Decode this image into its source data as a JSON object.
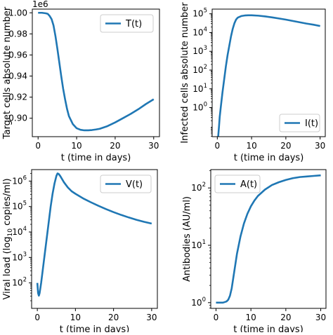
{
  "chart_data": [
    {
      "type": "line",
      "scale": "linear",
      "offset_text": "1e6",
      "xlabel": "t (time in days)",
      "ylabel": "Target cells absolute number",
      "xlim": [
        -1.5,
        31.5
      ],
      "ylim": [
        0.8825,
        1.0035
      ],
      "xticks": [
        0,
        10,
        20,
        30
      ],
      "xtick_labels": [
        "0",
        "10",
        "20",
        "30"
      ],
      "yticks": [
        0.9,
        0.92,
        0.94,
        0.96,
        0.98,
        1.0
      ],
      "ytick_labels": [
        "0.90",
        "0.92",
        "0.94",
        "0.96",
        "0.98",
        "1.00"
      ],
      "legend": {
        "label": "T(t)",
        "position": "upper right"
      },
      "series": [
        {
          "name": "T(t)",
          "color": "#1f77b4",
          "x": [
            0,
            1,
            2,
            2.5,
            3,
            3.5,
            4,
            4.5,
            5,
            5.5,
            6,
            6.5,
            7,
            7.5,
            8,
            9,
            10,
            11,
            12,
            13,
            14,
            15,
            16,
            18,
            20,
            22,
            24,
            26,
            28,
            30
          ],
          "y": [
            1.0,
            1.0,
            0.9995,
            0.999,
            0.997,
            0.994,
            0.988,
            0.978,
            0.966,
            0.953,
            0.94,
            0.928,
            0.918,
            0.909,
            0.902,
            0.8945,
            0.8905,
            0.889,
            0.8885,
            0.8885,
            0.8888,
            0.8893,
            0.89,
            0.8925,
            0.896,
            0.9,
            0.904,
            0.9085,
            0.9135,
            0.918
          ]
        }
      ]
    },
    {
      "type": "line",
      "scale": "log",
      "xlabel": "t (time in days)",
      "ylabel": "Infected cells absolute number",
      "xlim": [
        -1.5,
        31.5
      ],
      "ylim": [
        -1.55,
        5.25
      ],
      "xticks": [
        0,
        10,
        20,
        30
      ],
      "xtick_labels": [
        "0",
        "10",
        "20",
        "30"
      ],
      "yticks": [
        0,
        1,
        2,
        3,
        4,
        5
      ],
      "ytick_labels": [
        "10^0",
        "10^1",
        "10^2",
        "10^3",
        "10^4",
        "10^5"
      ],
      "legend": {
        "label": "I(t)",
        "position": "lower right"
      },
      "series": [
        {
          "name": "I(t)",
          "color": "#1f77b4",
          "x": [
            0.25,
            0.5,
            0.7,
            1,
            1.5,
            2,
            2.5,
            3,
            3.5,
            4,
            4.5,
            5,
            5.5,
            6,
            7,
            8,
            9,
            10,
            12,
            14,
            16,
            18,
            20,
            22,
            24,
            26,
            28,
            30
          ],
          "y": [
            -1.55,
            -1.0,
            -0.5,
            0.0,
            0.8,
            1.5,
            2.2,
            2.8,
            3.3,
            3.8,
            4.2,
            4.5,
            4.7,
            4.8,
            4.88,
            4.91,
            4.92,
            4.92,
            4.9,
            4.86,
            4.81,
            4.75,
            4.69,
            4.62,
            4.55,
            4.48,
            4.42,
            4.35
          ]
        }
      ]
    },
    {
      "type": "line",
      "scale": "log",
      "xlabel": "t (time in days)",
      "ylabel_prefix": "Viral load (log",
      "ylabel_sub": "10",
      "ylabel_suffix": " copies/ml)",
      "xlim": [
        -1.5,
        31.5
      ],
      "ylim": [
        1.0,
        6.45
      ],
      "xticks": [
        0,
        10,
        20,
        30
      ],
      "xtick_labels": [
        "0",
        "10",
        "20",
        "30"
      ],
      "yticks": [
        2,
        3,
        4,
        5,
        6
      ],
      "ytick_labels": [
        "10^2",
        "10^3",
        "10^4",
        "10^5",
        "10^6"
      ],
      "legend": {
        "label": "V(t)",
        "position": "upper right"
      },
      "series": [
        {
          "name": "V(t)",
          "color": "#1f77b4",
          "x": [
            0,
            0.2,
            0.4,
            0.6,
            0.8,
            1,
            1.5,
            2,
            2.5,
            3,
            3.5,
            4,
            4.5,
            5,
            5.3,
            5.6,
            6,
            7,
            8,
            9,
            10,
            12,
            14,
            16,
            18,
            20,
            22,
            24,
            26,
            28,
            30
          ],
          "y": [
            2.0,
            1.6,
            1.5,
            1.6,
            1.8,
            2.0,
            2.6,
            3.2,
            3.8,
            4.4,
            5.0,
            5.5,
            5.9,
            6.2,
            6.3,
            6.28,
            6.2,
            5.95,
            5.75,
            5.6,
            5.5,
            5.32,
            5.17,
            5.03,
            4.9,
            4.78,
            4.67,
            4.57,
            4.48,
            4.4,
            4.33
          ]
        }
      ]
    },
    {
      "type": "line",
      "scale": "log",
      "xlabel": "t (time in days)",
      "ylabel": "Antibodies (AU/ml)",
      "xlim": [
        -1.5,
        31.5
      ],
      "ylim": [
        -0.1,
        2.32
      ],
      "xticks": [
        0,
        10,
        20,
        30
      ],
      "xtick_labels": [
        "0",
        "10",
        "20",
        "30"
      ],
      "yticks": [
        0,
        1,
        2
      ],
      "ytick_labels": [
        "10^0",
        "10^1",
        "10^2"
      ],
      "legend": {
        "label": "A(t)",
        "position": "upper left"
      },
      "series": [
        {
          "name": "A(t)",
          "color": "#1f77b4",
          "x": [
            0,
            1,
            2,
            3,
            3.5,
            4,
            4.5,
            5,
            5.5,
            6,
            6.5,
            7,
            8,
            9,
            10,
            11,
            12,
            14,
            16,
            18,
            20,
            22,
            24,
            26,
            28,
            30
          ],
          "y": [
            0.0,
            0.0,
            0.0,
            0.02,
            0.05,
            0.12,
            0.25,
            0.45,
            0.65,
            0.85,
            1.0,
            1.15,
            1.38,
            1.55,
            1.68,
            1.78,
            1.86,
            1.97,
            2.05,
            2.1,
            2.14,
            2.17,
            2.19,
            2.2,
            2.21,
            2.22
          ]
        }
      ]
    }
  ]
}
